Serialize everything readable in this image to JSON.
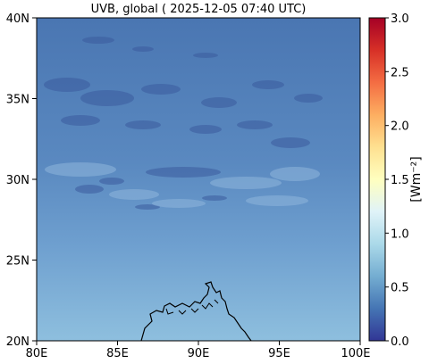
{
  "title": "UVB, global ( 2025-12-05 07:40 UTC)",
  "map": {
    "lat_ticks": [
      "40N",
      "35N",
      "30N",
      "25N",
      "20N"
    ],
    "lon_ticks": [
      "80E",
      "85E",
      "90E",
      "95E",
      "100E"
    ],
    "extent": {
      "lon": [
        80,
        100
      ],
      "lat": [
        20,
        40
      ]
    }
  },
  "colorbar": {
    "label": "[Wm⁻²]",
    "ticks": [
      "3.0",
      "2.5",
      "2.0",
      "1.5",
      "1.0",
      "0.5",
      "0.0"
    ],
    "range": [
      0,
      3
    ],
    "colormap": "RdYlBu_r",
    "colors": [
      "#313695",
      "#4575b4",
      "#74add1",
      "#abd9e9",
      "#e0f3f8",
      "#ffffbf",
      "#fee090",
      "#fdae61",
      "#f46d43",
      "#d73027",
      "#a50026"
    ]
  },
  "colors": {
    "field_top": "#4a76b2",
    "field_bottom": "#8ebfde",
    "cloud_dark": "#3b5b9e",
    "cloud_light": "#8fb6dc",
    "coastline": "#000000"
  }
}
